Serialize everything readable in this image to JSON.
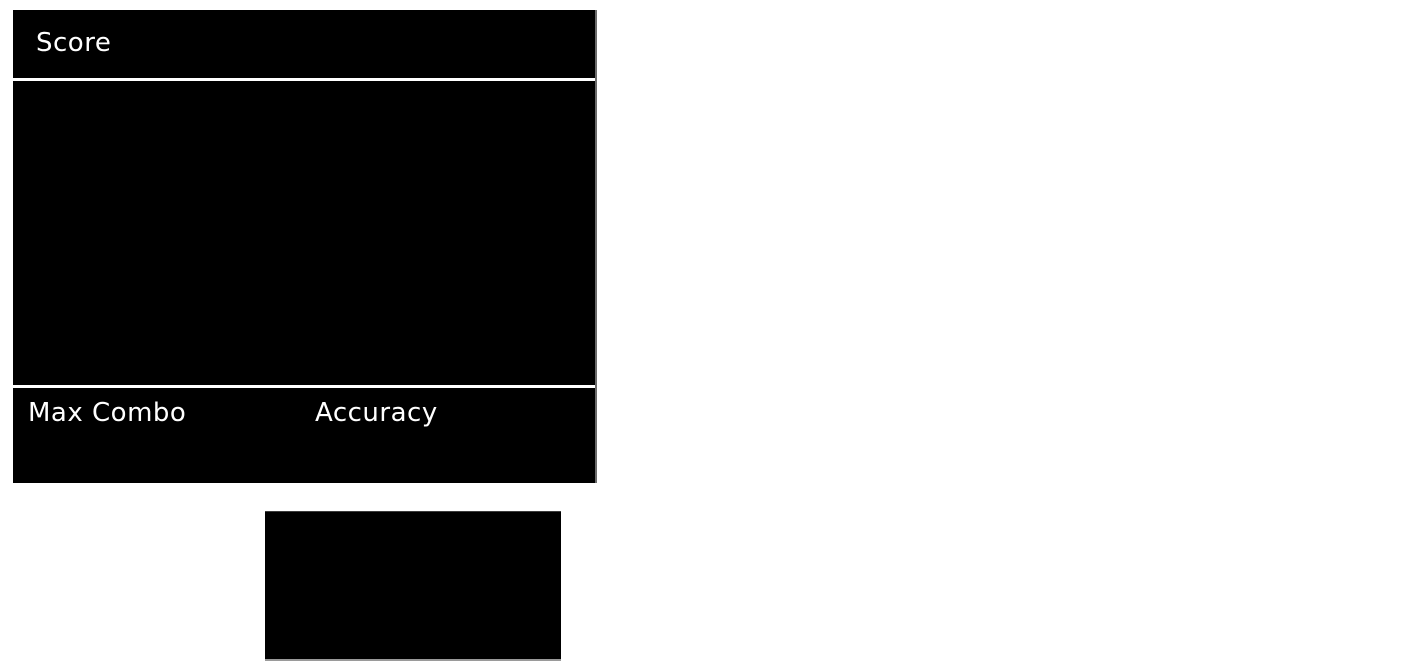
{
  "screen": {
    "type": "game-results",
    "background_color": "#ffffff",
    "panel_color": "#000000",
    "label_color": "#ffffff",
    "edge_line_color": "#6b6b6b"
  },
  "results": {
    "score_label": "Score",
    "score_value": "",
    "graph_content": "",
    "max_combo_label": "Max Combo",
    "max_combo_value": "",
    "accuracy_label": "Accuracy",
    "accuracy_value": ""
  }
}
